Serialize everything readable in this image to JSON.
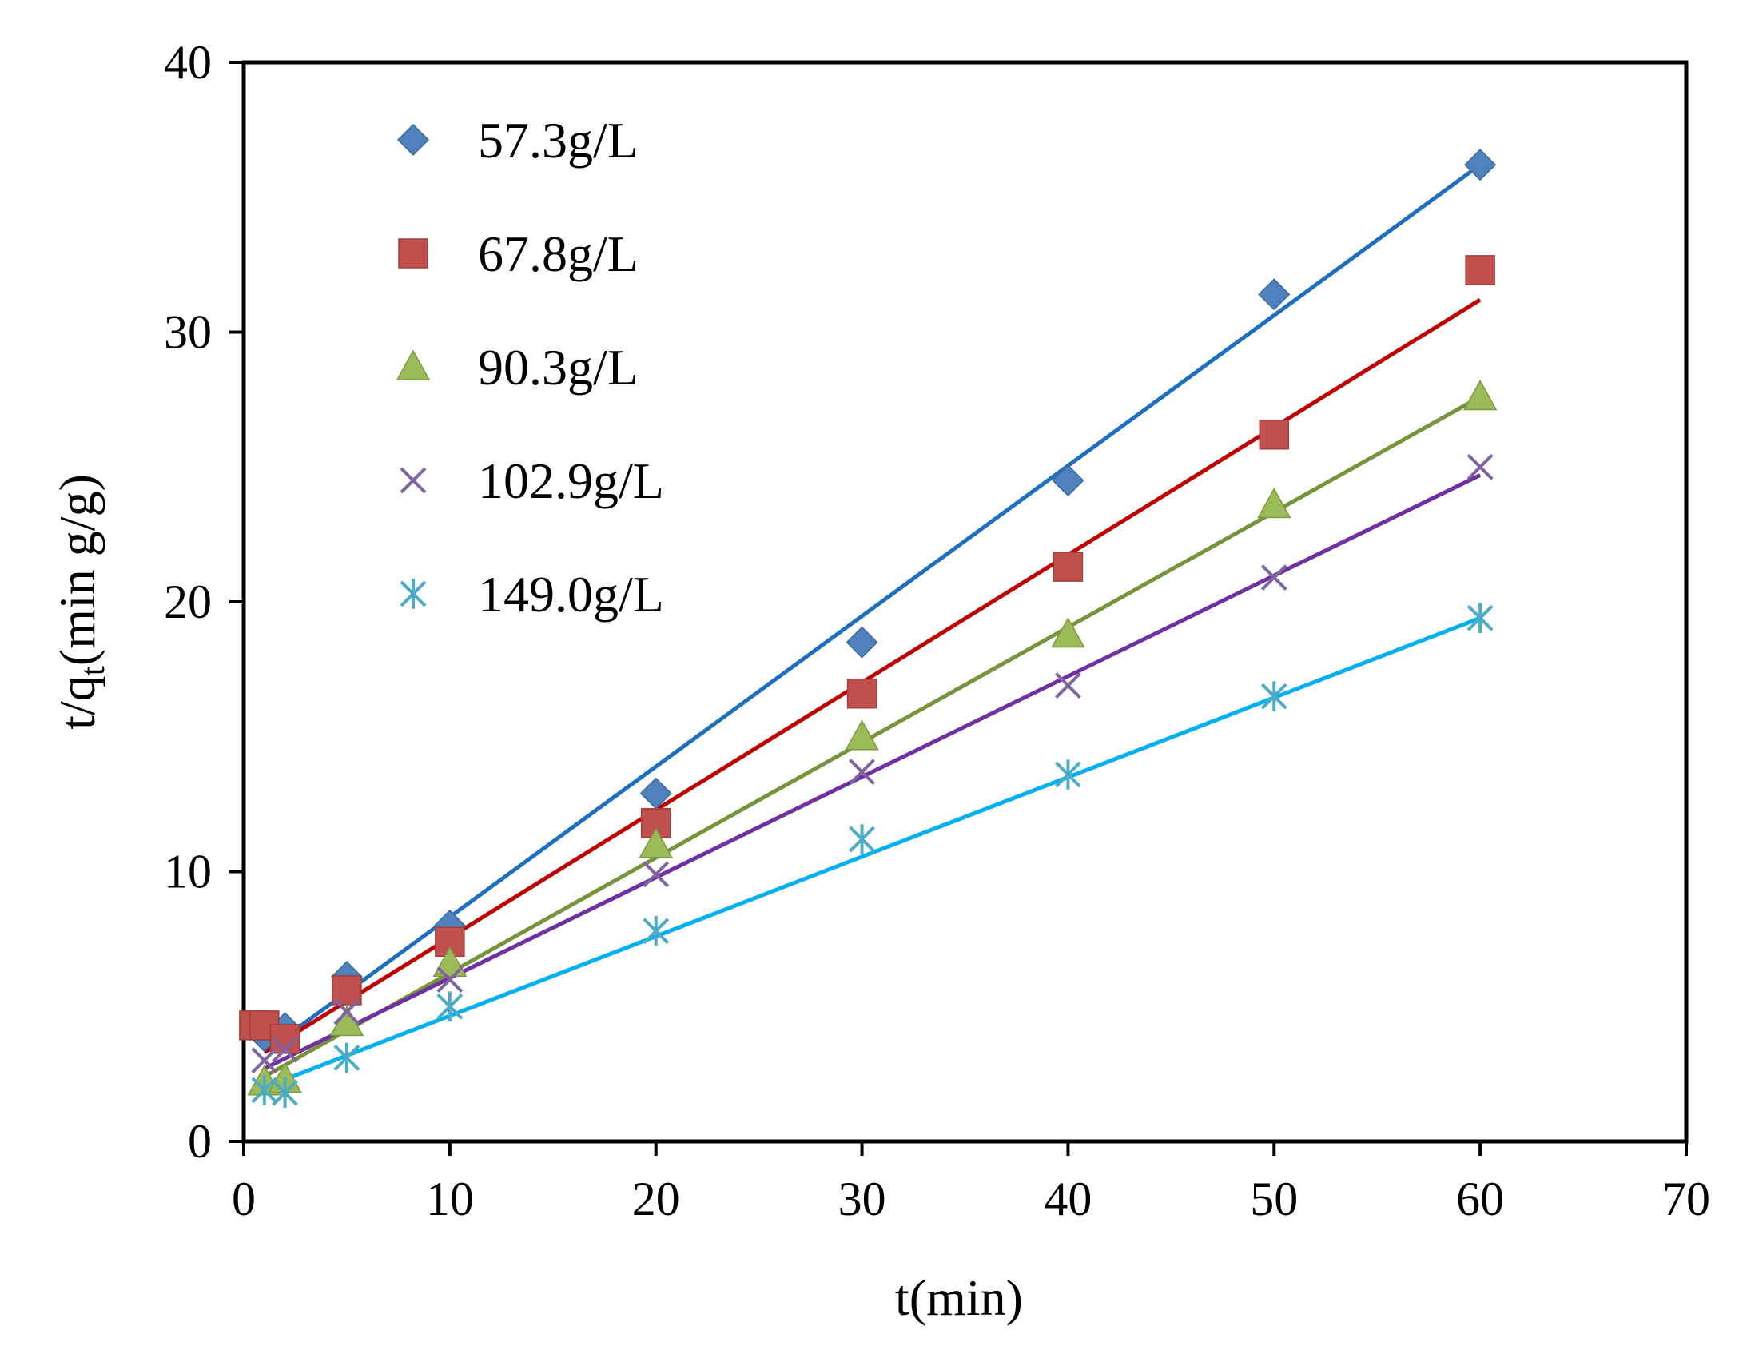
{
  "chart_data": {
    "type": "scatter",
    "title": "",
    "xlabel": "t(min)",
    "ylabel_main": "t/q",
    "ylabel_sub": "t",
    "ylabel_rest": "(min g/g)",
    "xlim": [
      0,
      70
    ],
    "ylim": [
      0,
      40
    ],
    "xticks": [
      0,
      10,
      20,
      30,
      40,
      50,
      60,
      70
    ],
    "yticks": [
      0,
      10,
      20,
      30,
      40
    ],
    "grid": false,
    "legend_position": "top-left",
    "series": [
      {
        "name": "57.3g/L",
        "marker": "diamond",
        "marker_color": "#4F81BD",
        "line_color": "#1F6FBF",
        "x": [
          1,
          2,
          5,
          10,
          20,
          30,
          40,
          50,
          60
        ],
        "y": [
          3.9,
          4.2,
          6.1,
          8.0,
          12.9,
          18.5,
          24.5,
          31.4,
          36.2
        ],
        "fit": {
          "x": [
            1,
            60
          ],
          "y": [
            3.3,
            36.2
          ]
        }
      },
      {
        "name": "67.8g/L",
        "marker": "square",
        "marker_color": "#C0504D",
        "line_color": "#C00000",
        "x": [
          0.5,
          1,
          2,
          5,
          10,
          20,
          30,
          40,
          50,
          60
        ],
        "y": [
          4.3,
          4.3,
          3.8,
          5.6,
          7.4,
          11.8,
          16.6,
          21.3,
          26.2,
          32.3
        ],
        "fit": {
          "x": [
            1,
            60
          ],
          "y": [
            3.3,
            31.2
          ]
        }
      },
      {
        "name": "90.3g/L",
        "marker": "triangle",
        "marker_color": "#9BBB59",
        "line_color": "#77933C",
        "x": [
          1,
          2,
          5,
          10,
          20,
          30,
          40,
          50,
          60
        ],
        "y": [
          2.2,
          2.3,
          4.4,
          6.6,
          11.0,
          15.0,
          18.8,
          23.6,
          27.6
        ],
        "fit": {
          "x": [
            1,
            60
          ],
          "y": [
            2.4,
            27.6
          ]
        }
      },
      {
        "name": "102.9g/L",
        "marker": "x",
        "marker_color": "#8064A2",
        "line_color": "#7030A0",
        "x": [
          1,
          2,
          5,
          10,
          20,
          30,
          40,
          50,
          60
        ],
        "y": [
          3.0,
          3.4,
          4.8,
          6.0,
          9.9,
          13.7,
          16.9,
          20.9,
          25.0
        ],
        "fit": {
          "x": [
            1,
            60
          ],
          "y": [
            2.7,
            24.7
          ]
        }
      },
      {
        "name": "149.0g/L",
        "marker": "asterisk",
        "marker_color": "#4BACC6",
        "line_color": "#00B0F0",
        "x": [
          1,
          2,
          5,
          10,
          20,
          30,
          40,
          50,
          60
        ],
        "y": [
          1.9,
          1.8,
          3.1,
          5.0,
          7.8,
          11.2,
          13.6,
          16.5,
          19.4
        ],
        "fit": {
          "x": [
            1,
            60
          ],
          "y": [
            2.0,
            19.4
          ]
        }
      }
    ]
  }
}
